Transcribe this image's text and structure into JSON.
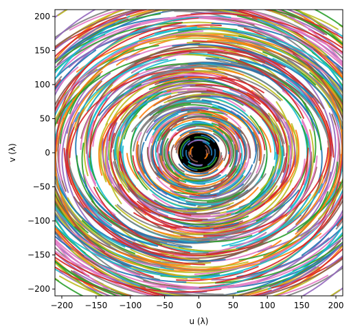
{
  "chart_data": {
    "type": "scatter",
    "title": "",
    "xlabel": "u (λ)",
    "ylabel": "v (λ)",
    "xlim": [
      -210,
      210
    ],
    "ylim": [
      -210,
      210
    ],
    "xticks": [
      -200,
      -150,
      -100,
      -50,
      0,
      50,
      100,
      150,
      200
    ],
    "yticks": [
      -200,
      -150,
      -100,
      -50,
      0,
      50,
      100,
      150,
      200
    ],
    "xtick_labels": [
      "−200",
      "−150",
      "−100",
      "−50",
      "0",
      "50",
      "100",
      "150",
      "200"
    ],
    "ytick_labels": [
      "−200",
      "−150",
      "−100",
      "−50",
      "0",
      "50",
      "100",
      "150",
      "200"
    ],
    "grid": false,
    "legend": "none",
    "aspect": "equal",
    "palette": [
      "#1f77b4",
      "#ff7f0e",
      "#2ca02c",
      "#d62728",
      "#9467bd",
      "#8c564b",
      "#e377c2",
      "#7f7f7f",
      "#bcbd22",
      "#17becf"
    ],
    "core": {
      "color": "#000000",
      "radius": 30
    },
    "track_groups": [
      {
        "ring_radius_range": [
          12,
          30
        ],
        "ellipse_ratio": 0.85,
        "count": 40
      },
      {
        "ring_radius_range": [
          30,
          70
        ],
        "ellipse_ratio": 0.85,
        "count": 60
      },
      {
        "ring_radius_range": [
          70,
          130
        ],
        "ellipse_ratio": 0.8,
        "count": 90
      },
      {
        "ring_radius_range": [
          130,
          300
        ],
        "ellipse_ratio": 0.8,
        "count": 260
      }
    ]
  }
}
